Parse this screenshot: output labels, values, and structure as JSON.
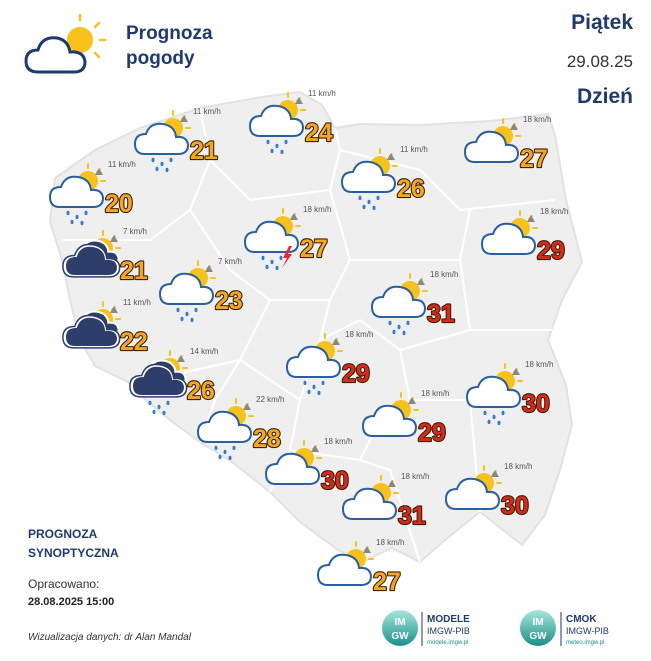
{
  "header": {
    "title_line1": "Prognoza",
    "title_line2": "pogody",
    "day": "Piątek",
    "date": "29.08.25",
    "period": "Dzień"
  },
  "points": [
    {
      "temp": 21,
      "wind": "11 km/h",
      "icon": "sun-cloud-rain",
      "color": "#f5a623"
    },
    {
      "temp": 24,
      "wind": "11 km/h",
      "icon": "sun-cloud-rain",
      "color": "#f5a623"
    },
    {
      "temp": 27,
      "wind": "18 km/h",
      "icon": "sun-cloud",
      "color": "#f5a623"
    },
    {
      "temp": 20,
      "wind": "11 km/h",
      "icon": "sun-cloud-rain",
      "color": "#f5a623"
    },
    {
      "temp": 26,
      "wind": "11 km/h",
      "icon": "sun-cloud-rain",
      "color": "#f5a623"
    },
    {
      "temp": 27,
      "wind": "18 km/h",
      "icon": "sun-cloud-storm",
      "color": "#f5a623"
    },
    {
      "temp": 29,
      "wind": "18 km/h",
      "icon": "sun-cloud",
      "color": "#d9291c"
    },
    {
      "temp": 21,
      "wind": "7 km/h",
      "icon": "dark-clouds",
      "color": "#f5a623"
    },
    {
      "temp": 23,
      "wind": "7 km/h",
      "icon": "sun-cloud-rain",
      "color": "#f5a623"
    },
    {
      "temp": 31,
      "wind": "18 km/h",
      "icon": "sun-cloud-rain",
      "color": "#d9291c"
    },
    {
      "temp": 22,
      "wind": "11 km/h",
      "icon": "dark-clouds",
      "color": "#f5a623"
    },
    {
      "temp": 29,
      "wind": "18 km/h",
      "icon": "sun-cloud-rain",
      "color": "#d9291c"
    },
    {
      "temp": 26,
      "wind": "14 km/h",
      "icon": "dark-clouds-rain",
      "color": "#f5a623"
    },
    {
      "temp": 30,
      "wind": "18 km/h",
      "icon": "sun-cloud-rain",
      "color": "#d9291c"
    },
    {
      "temp": 28,
      "wind": "22 km/h",
      "icon": "sun-cloud-rain",
      "color": "#f5a623"
    },
    {
      "temp": 29,
      "wind": "18 km/h",
      "icon": "sun-cloud",
      "color": "#d9291c"
    },
    {
      "temp": 30,
      "wind": "18 km/h",
      "icon": "sun-cloud",
      "color": "#d9291c"
    },
    {
      "temp": 31,
      "wind": "18 km/h",
      "icon": "sun-cloud",
      "color": "#d9291c"
    },
    {
      "temp": 30,
      "wind": "18 km/h",
      "icon": "sun-cloud",
      "color": "#d9291c"
    },
    {
      "temp": 27,
      "wind": "18 km/h",
      "icon": "sun-cloud",
      "color": "#f5a623"
    }
  ],
  "footer": {
    "label_line1": "PROGNOZA",
    "label_line2": "SYNOPTYCZNA",
    "prepared_label": "Opracowano:",
    "prepared_time": "28.08.2025 15:00",
    "credit": "Wizualizacja danych: dr Alan Mandal",
    "logo1": {
      "badge_top": "IM",
      "badge_bottom": "GW",
      "name": "MODELE",
      "org": "IMGW-PIB",
      "url": "modele.imgw.pl"
    },
    "logo2": {
      "badge_top": "IM",
      "badge_bottom": "GW",
      "name": "CMOK",
      "org": "IMGW-PIB",
      "url": "meteo.imgw.pl"
    }
  }
}
